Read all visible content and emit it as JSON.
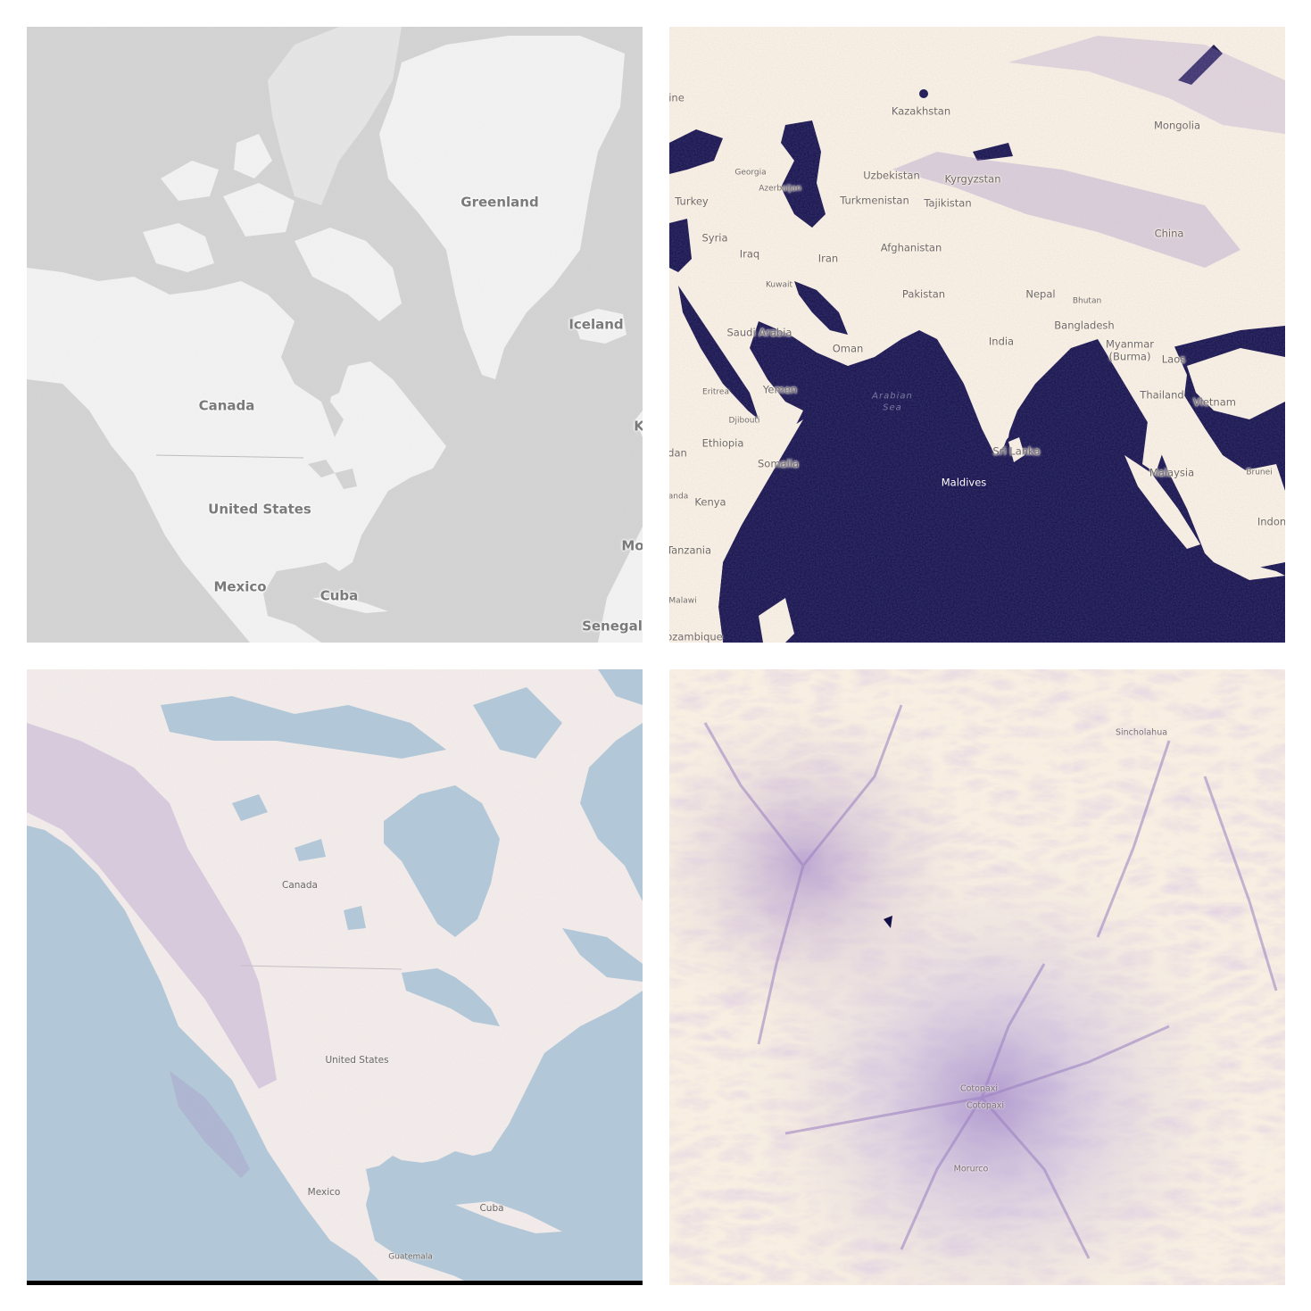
{
  "colors": {
    "light_ocean": "#d4d4d4",
    "light_land": "#f4f4f4",
    "dark_ocean": "#120f49",
    "cream_land": "#fbf4e2",
    "relief_purple": "#a08ac4",
    "blue_water": "#b0c8d6",
    "pale_land": "#f4eeea"
  },
  "maps": [
    {
      "style": "light grayscale",
      "labels": [
        "Greenland",
        "Iceland",
        "Canada",
        "United States",
        "Mexico",
        "Cuba",
        "Senegal",
        "Mo",
        "K"
      ]
    },
    {
      "style": "cream terrain with dark ocean",
      "labels": [
        "ine",
        "Kazakhstan",
        "Mongolia",
        "Georgia",
        "Azerbaijan",
        "Uzbekistan",
        "Kyrgyzstan",
        "Turkey",
        "Turkmenistan",
        "Tajikistan",
        "Syria",
        "Iraq",
        "Iran",
        "Afghanistan",
        "China",
        "Kuwait",
        "Pakistan",
        "Nepal",
        "Bhutan",
        "Saudi Arabia",
        "Bangladesh",
        "Oman",
        "India",
        "Myanmar",
        "(Burma)",
        "Laos",
        "Eritrea",
        "Yemen",
        "Thailand",
        "Vietnam",
        "Djibouti",
        "Ethiopia",
        "Sri Lanka",
        "dan",
        "Somalia",
        "Malaysia",
        "Brunei",
        "Maldives",
        "anda",
        "Kenya",
        "Indon",
        "Tanzania",
        "Malawi",
        "ozambique"
      ],
      "sea_label": [
        "Arabian",
        "Sea"
      ]
    },
    {
      "style": "pastel terrain with blue water",
      "labels": [
        "Canada",
        "United States",
        "Mexico",
        "Cuba",
        "Guatemala"
      ]
    },
    {
      "style": "zoomed volcanic relief",
      "labels": [
        "Sincholahua",
        "Cotopaxi",
        "Cotopaxi",
        "Morurco"
      ]
    }
  ]
}
